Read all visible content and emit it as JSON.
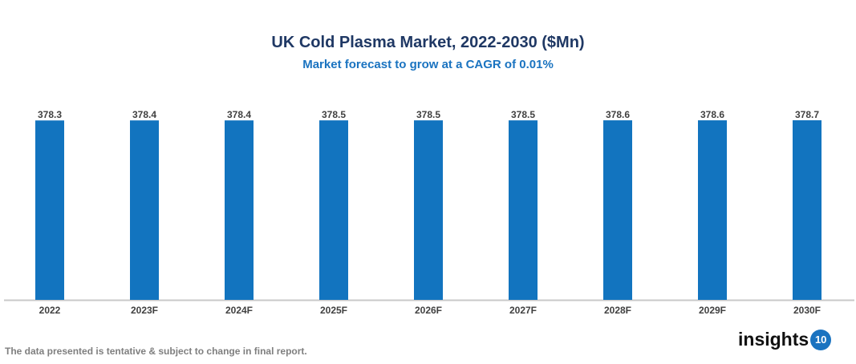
{
  "chart_data": {
    "type": "bar",
    "title": "UK Cold Plasma Market, 2022-2030 ($Mn)",
    "subtitle": "Market forecast to grow at a CAGR of 0.01%",
    "categories": [
      "2022",
      "2023F",
      "2024F",
      "2025F",
      "2026F",
      "2027F",
      "2028F",
      "2029F",
      "2030F"
    ],
    "values": [
      378.3,
      378.4,
      378.4,
      378.5,
      378.5,
      378.5,
      378.6,
      378.6,
      378.7
    ],
    "value_labels": [
      "378.3",
      "378.4",
      "378.4",
      "378.5",
      "378.5",
      "378.5",
      "378.6",
      "378.6",
      "378.7"
    ],
    "xlabel": "",
    "ylabel": "",
    "ylim": [
      0,
      378.7
    ],
    "grid": false,
    "bar_color": "#1274bf"
  },
  "footer": {
    "note": "The data presented is tentative & subject to change in final report.",
    "logo_text": "insights",
    "logo_number": "10"
  }
}
